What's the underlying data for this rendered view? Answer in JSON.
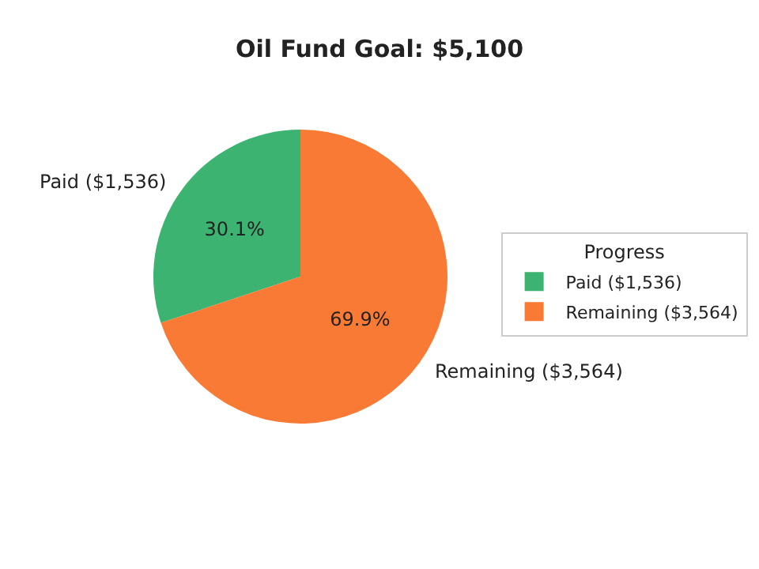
{
  "chart_data": {
    "type": "pie",
    "title": "Oil Fund Goal: $5,100",
    "categories": [
      "Paid ($1,536)",
      "Remaining ($3,564)"
    ],
    "values": [
      30.1,
      69.9
    ],
    "colors": [
      "#3cb371",
      "#f97a35"
    ],
    "value_labels": [
      "30.1%",
      "69.9%"
    ],
    "legend": "right",
    "legend_title": "Progress"
  }
}
